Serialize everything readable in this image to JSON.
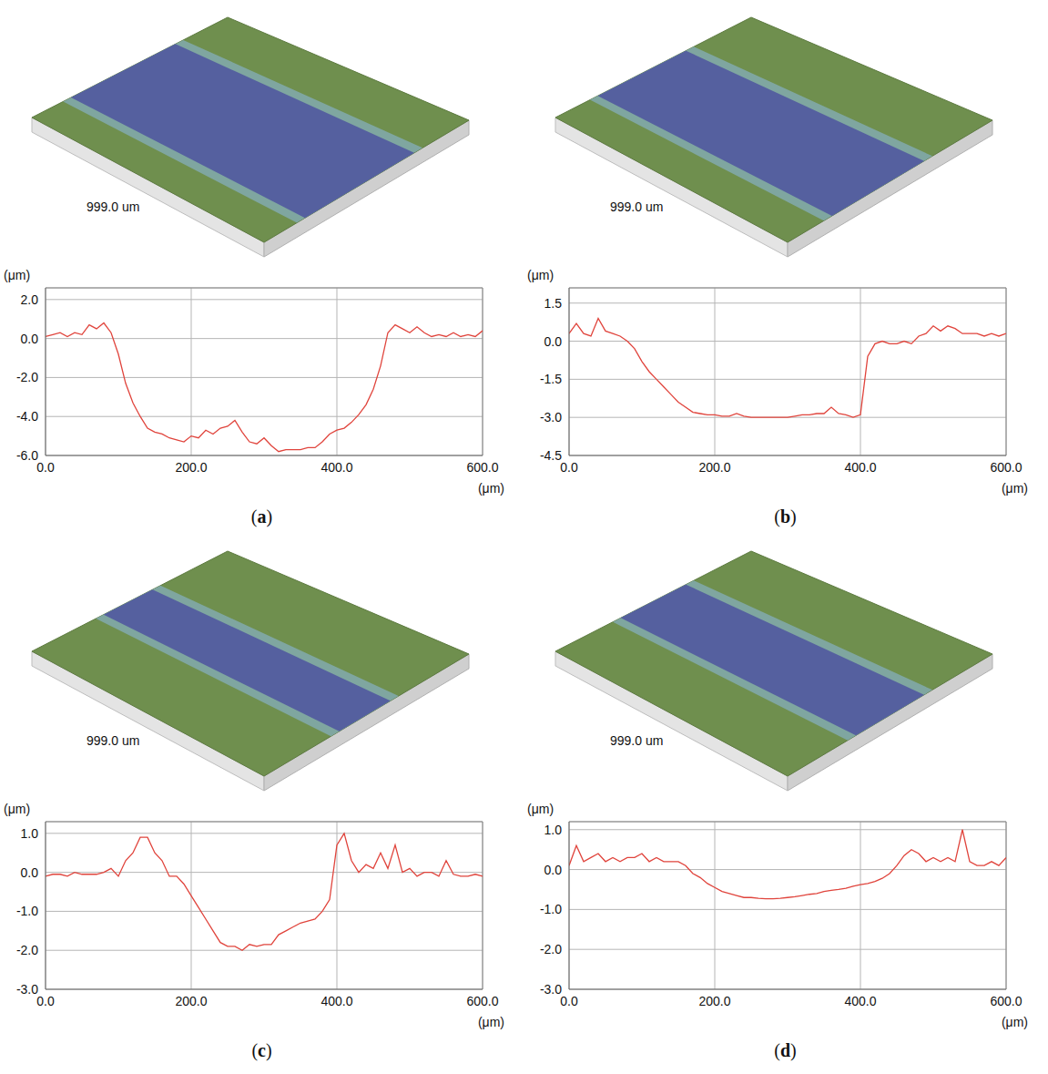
{
  "chart_data": [
    {
      "type": "line",
      "title": "(a)",
      "annotations": [
        "999.0 um"
      ],
      "x_label": "(μm)",
      "y_label": "(μm)",
      "color": "#e0443c",
      "grid": true,
      "xlim": [
        0,
        600
      ],
      "xticks": [
        {
          "value": 0,
          "label": "0.0"
        },
        {
          "value": 200,
          "label": "200.0"
        },
        {
          "value": 400,
          "label": "400.0"
        },
        {
          "value": 600,
          "label": "600.0"
        }
      ],
      "ylim": [
        -6,
        2.6
      ],
      "yticks": [
        {
          "value": 2,
          "label": "2.0"
        },
        {
          "value": 0,
          "label": "0.0"
        },
        {
          "value": -2,
          "label": "-2.0"
        },
        {
          "value": -4,
          "label": "-4.0"
        },
        {
          "value": -6,
          "label": "-6.0"
        }
      ],
      "x": [
        0,
        10,
        20,
        30,
        40,
        50,
        60,
        70,
        80,
        90,
        100,
        110,
        120,
        130,
        140,
        150,
        160,
        170,
        180,
        190,
        200,
        210,
        220,
        230,
        240,
        250,
        260,
        270,
        280,
        290,
        300,
        310,
        320,
        330,
        340,
        350,
        360,
        370,
        380,
        390,
        400,
        410,
        420,
        430,
        440,
        450,
        460,
        470,
        480,
        490,
        500,
        510,
        520,
        530,
        540,
        550,
        560,
        570,
        580,
        590,
        600
      ],
      "values": [
        0.1,
        0.2,
        0.3,
        0.1,
        0.3,
        0.2,
        0.7,
        0.5,
        0.8,
        0.3,
        -0.8,
        -2.3,
        -3.3,
        -4.0,
        -4.6,
        -4.8,
        -4.9,
        -5.1,
        -5.2,
        -5.3,
        -5.0,
        -5.1,
        -4.7,
        -4.9,
        -4.6,
        -4.5,
        -4.2,
        -4.8,
        -5.3,
        -5.4,
        -5.1,
        -5.5,
        -5.8,
        -5.7,
        -5.7,
        -5.7,
        -5.6,
        -5.6,
        -5.3,
        -4.9,
        -4.7,
        -4.6,
        -4.3,
        -3.9,
        -3.4,
        -2.6,
        -1.4,
        0.3,
        0.7,
        0.5,
        0.3,
        0.6,
        0.3,
        0.1,
        0.2,
        0.1,
        0.3,
        0.1,
        0.2,
        0.1,
        0.4
      ]
    },
    {
      "type": "line",
      "title": "(b)",
      "annotations": [
        "999.0 um"
      ],
      "x_label": "(μm)",
      "y_label": "(μm)",
      "color": "#e0443c",
      "grid": true,
      "xlim": [
        0,
        600
      ],
      "xticks": [
        {
          "value": 0,
          "label": "0.0"
        },
        {
          "value": 200,
          "label": "200.0"
        },
        {
          "value": 400,
          "label": "400.0"
        },
        {
          "value": 600,
          "label": "600.0"
        }
      ],
      "ylim": [
        -4.5,
        2.1
      ],
      "yticks": [
        {
          "value": 1.5,
          "label": "1.5"
        },
        {
          "value": 0,
          "label": "0.0"
        },
        {
          "value": -1.5,
          "label": "-1.5"
        },
        {
          "value": -3,
          "label": "-3.0"
        },
        {
          "value": -4.5,
          "label": "-4.5"
        }
      ],
      "x": [
        0,
        10,
        20,
        30,
        40,
        50,
        60,
        70,
        80,
        90,
        100,
        110,
        120,
        130,
        140,
        150,
        160,
        170,
        180,
        190,
        200,
        210,
        220,
        230,
        240,
        250,
        260,
        270,
        280,
        290,
        300,
        310,
        320,
        330,
        340,
        350,
        360,
        370,
        380,
        390,
        400,
        410,
        420,
        430,
        440,
        450,
        460,
        470,
        480,
        490,
        500,
        510,
        520,
        530,
        540,
        550,
        560,
        570,
        580,
        590,
        600
      ],
      "values": [
        0.3,
        0.7,
        0.3,
        0.2,
        0.9,
        0.4,
        0.3,
        0.2,
        0.0,
        -0.3,
        -0.8,
        -1.2,
        -1.5,
        -1.8,
        -2.1,
        -2.4,
        -2.6,
        -2.8,
        -2.85,
        -2.9,
        -2.9,
        -2.95,
        -2.95,
        -2.85,
        -2.95,
        -3.0,
        -3.0,
        -3.0,
        -3.0,
        -3.0,
        -3.0,
        -2.95,
        -2.9,
        -2.9,
        -2.85,
        -2.85,
        -2.6,
        -2.85,
        -2.9,
        -3.0,
        -2.9,
        -0.6,
        -0.1,
        0.0,
        -0.1,
        -0.1,
        0.0,
        -0.1,
        0.2,
        0.3,
        0.6,
        0.4,
        0.6,
        0.5,
        0.3,
        0.3,
        0.3,
        0.2,
        0.3,
        0.2,
        0.3
      ]
    },
    {
      "type": "line",
      "title": "(c)",
      "annotations": [
        "999.0 um"
      ],
      "x_label": "(μm)",
      "y_label": "(μm)",
      "color": "#e0443c",
      "grid": true,
      "xlim": [
        0,
        600
      ],
      "xticks": [
        {
          "value": 0,
          "label": "0.0"
        },
        {
          "value": 200,
          "label": "200.0"
        },
        {
          "value": 400,
          "label": "400.0"
        },
        {
          "value": 600,
          "label": "600.0"
        }
      ],
      "ylim": [
        -3,
        1.3
      ],
      "yticks": [
        {
          "value": 1,
          "label": "1.0"
        },
        {
          "value": 0,
          "label": "0.0"
        },
        {
          "value": -1,
          "label": "-1.0"
        },
        {
          "value": -2,
          "label": "-2.0"
        },
        {
          "value": -3,
          "label": "-3.0"
        }
      ],
      "x": [
        0,
        10,
        20,
        30,
        40,
        50,
        60,
        70,
        80,
        90,
        100,
        110,
        120,
        130,
        140,
        150,
        160,
        170,
        180,
        190,
        200,
        210,
        220,
        230,
        240,
        250,
        260,
        270,
        280,
        290,
        300,
        310,
        320,
        330,
        340,
        350,
        360,
        370,
        380,
        390,
        400,
        410,
        420,
        430,
        440,
        450,
        460,
        470,
        480,
        490,
        500,
        510,
        520,
        530,
        540,
        550,
        560,
        570,
        580,
        590,
        600
      ],
      "values": [
        -0.1,
        -0.05,
        -0.05,
        -0.1,
        0.0,
        -0.05,
        -0.05,
        -0.05,
        0.0,
        0.1,
        -0.1,
        0.3,
        0.5,
        0.9,
        0.9,
        0.5,
        0.3,
        -0.1,
        -0.1,
        -0.3,
        -0.6,
        -0.9,
        -1.2,
        -1.5,
        -1.8,
        -1.9,
        -1.9,
        -2.0,
        -1.85,
        -1.9,
        -1.85,
        -1.85,
        -1.6,
        -1.5,
        -1.4,
        -1.3,
        -1.25,
        -1.2,
        -1.0,
        -0.7,
        0.7,
        1.0,
        0.3,
        0.0,
        0.2,
        0.1,
        0.5,
        0.1,
        0.7,
        0.0,
        0.1,
        -0.1,
        0.0,
        0.0,
        -0.1,
        0.3,
        -0.05,
        -0.1,
        -0.1,
        -0.05,
        -0.1
      ]
    },
    {
      "type": "line",
      "title": "(d)",
      "annotations": [
        "999.0 um"
      ],
      "x_label": "(μm)",
      "y_label": "(μm)",
      "color": "#e0443c",
      "grid": true,
      "xlim": [
        0,
        600
      ],
      "xticks": [
        {
          "value": 0,
          "label": "0.0"
        },
        {
          "value": 200,
          "label": "200.0"
        },
        {
          "value": 400,
          "label": "400.0"
        },
        {
          "value": 600,
          "label": "600.0"
        }
      ],
      "ylim": [
        -3,
        1.2
      ],
      "yticks": [
        {
          "value": 1,
          "label": "1.0"
        },
        {
          "value": 0,
          "label": "0.0"
        },
        {
          "value": -1,
          "label": "-1.0"
        },
        {
          "value": -2,
          "label": "-2.0"
        },
        {
          "value": -3,
          "label": "-3.0"
        }
      ],
      "x": [
        0,
        10,
        20,
        30,
        40,
        50,
        60,
        70,
        80,
        90,
        100,
        110,
        120,
        130,
        140,
        150,
        160,
        170,
        180,
        190,
        200,
        210,
        220,
        230,
        240,
        250,
        260,
        270,
        280,
        290,
        300,
        310,
        320,
        330,
        340,
        350,
        360,
        370,
        380,
        390,
        400,
        410,
        420,
        430,
        440,
        450,
        460,
        470,
        480,
        490,
        500,
        510,
        520,
        530,
        540,
        550,
        560,
        570,
        580,
        590,
        600
      ],
      "values": [
        0.1,
        0.6,
        0.2,
        0.3,
        0.4,
        0.2,
        0.3,
        0.2,
        0.3,
        0.3,
        0.4,
        0.2,
        0.3,
        0.2,
        0.2,
        0.2,
        0.1,
        -0.1,
        -0.2,
        -0.35,
        -0.45,
        -0.55,
        -0.6,
        -0.65,
        -0.7,
        -0.7,
        -0.72,
        -0.73,
        -0.73,
        -0.72,
        -0.7,
        -0.68,
        -0.65,
        -0.62,
        -0.6,
        -0.55,
        -0.52,
        -0.5,
        -0.47,
        -0.42,
        -0.38,
        -0.35,
        -0.3,
        -0.22,
        -0.1,
        0.1,
        0.35,
        0.5,
        0.4,
        0.2,
        0.3,
        0.2,
        0.3,
        0.2,
        1.0,
        0.2,
        0.1,
        0.1,
        0.2,
        0.1,
        0.3
      ]
    }
  ]
}
